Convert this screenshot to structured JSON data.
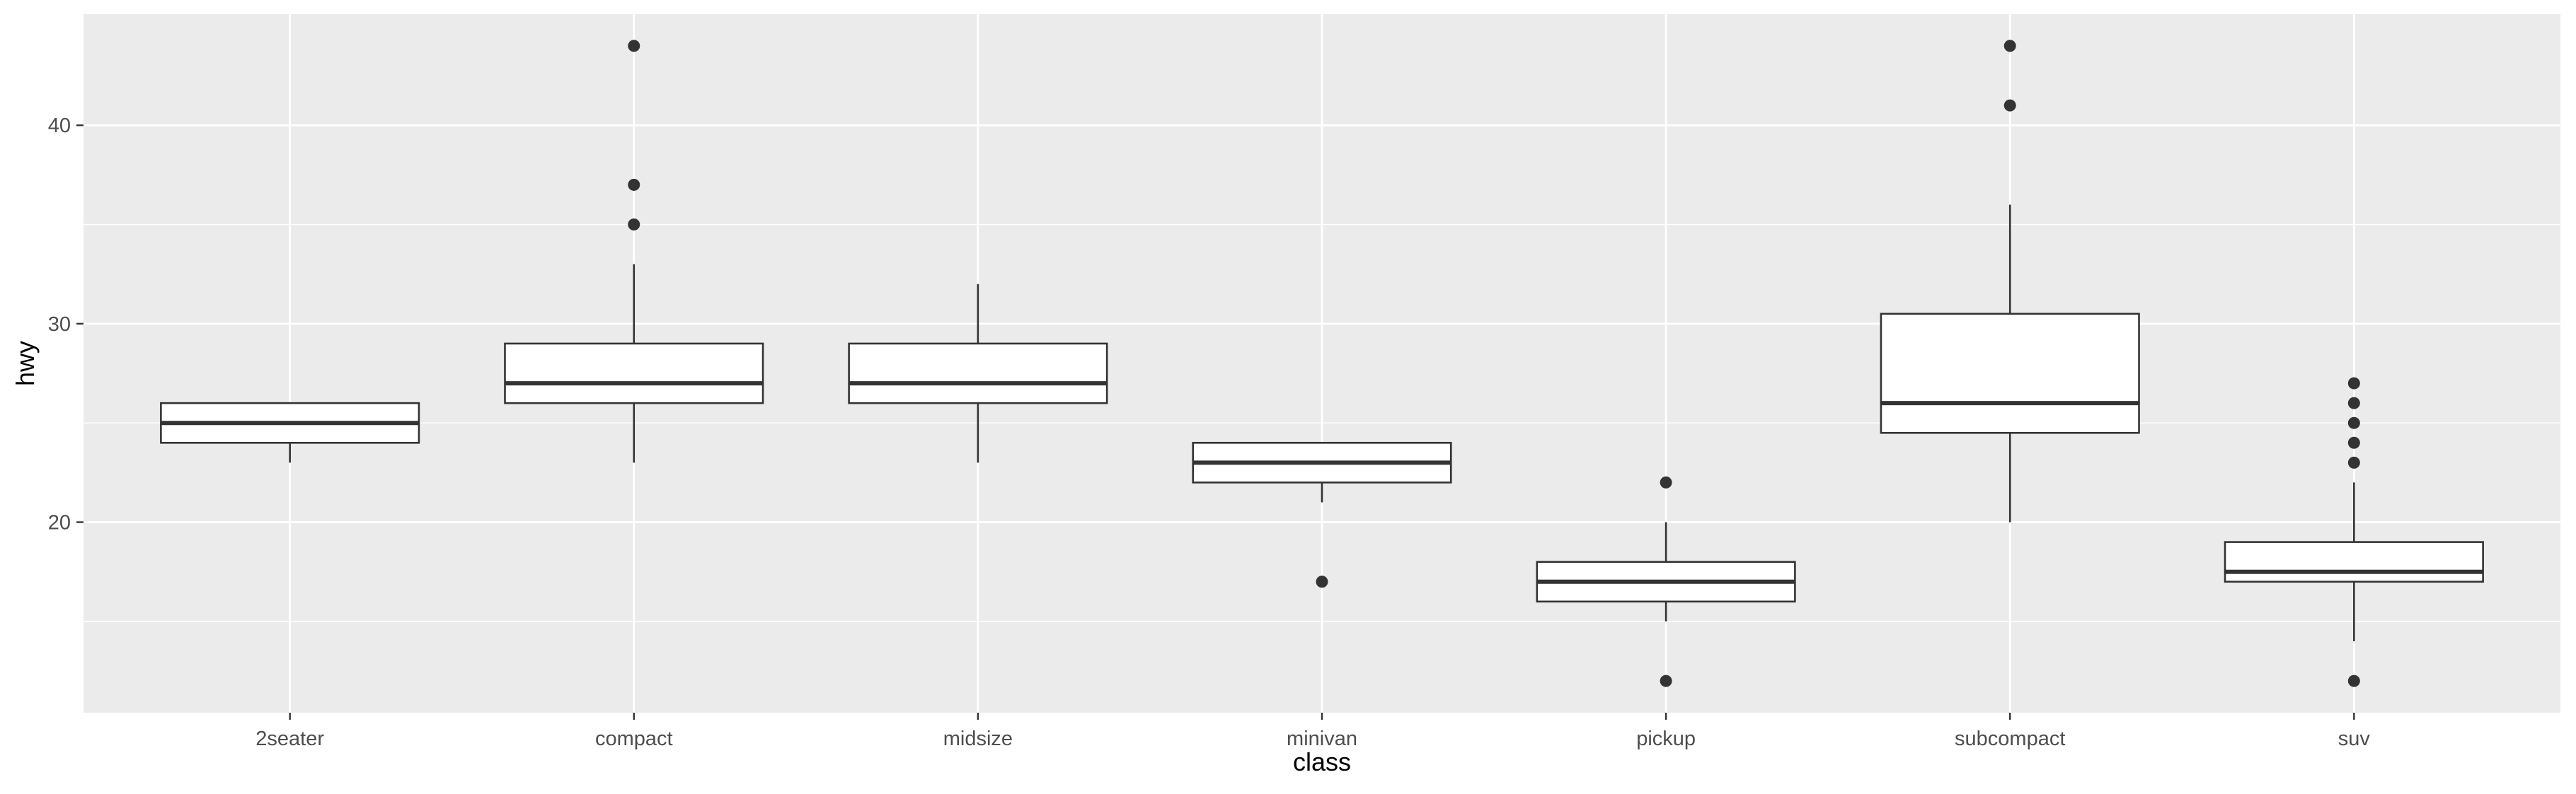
{
  "chart_data": {
    "type": "boxplot",
    "xlabel": "class",
    "ylabel": "hwy",
    "ylim": [
      10.4,
      45.6
    ],
    "y_ticks": [
      20,
      30,
      40
    ],
    "y_minor_ticks": [
      15,
      25,
      35
    ],
    "grid": true,
    "colors": {
      "panel": "#EBEBEB",
      "grid": "#FFFFFF",
      "box_fill": "#FFFFFF",
      "stroke": "#333333",
      "tick_text": "#4D4D4D",
      "axis_title": "#000000"
    },
    "categories": [
      "2seater",
      "compact",
      "midsize",
      "minivan",
      "pickup",
      "subcompact",
      "suv"
    ],
    "boxes": [
      {
        "category": "2seater",
        "lower_whisker": 23,
        "q1": 24,
        "median": 25,
        "q3": 26,
        "upper_whisker": 26,
        "outliers": []
      },
      {
        "category": "compact",
        "lower_whisker": 23,
        "q1": 26,
        "median": 27,
        "q3": 29,
        "upper_whisker": 33,
        "outliers": [
          35,
          37,
          44
        ]
      },
      {
        "category": "midsize",
        "lower_whisker": 23,
        "q1": 26,
        "median": 27,
        "q3": 29,
        "upper_whisker": 32,
        "outliers": []
      },
      {
        "category": "minivan",
        "lower_whisker": 21,
        "q1": 22,
        "median": 23,
        "q3": 24,
        "upper_whisker": 24,
        "outliers": [
          17
        ]
      },
      {
        "category": "pickup",
        "lower_whisker": 15,
        "q1": 16,
        "median": 17,
        "q3": 18,
        "upper_whisker": 20,
        "outliers": [
          12,
          22
        ]
      },
      {
        "category": "subcompact",
        "lower_whisker": 20,
        "q1": 24.5,
        "median": 26,
        "q3": 30.5,
        "upper_whisker": 36,
        "outliers": [
          41,
          44
        ]
      },
      {
        "category": "suv",
        "lower_whisker": 14,
        "q1": 17,
        "median": 17.5,
        "q3": 19,
        "upper_whisker": 22,
        "outliers": [
          12,
          23,
          24,
          25,
          26,
          27
        ]
      }
    ]
  }
}
